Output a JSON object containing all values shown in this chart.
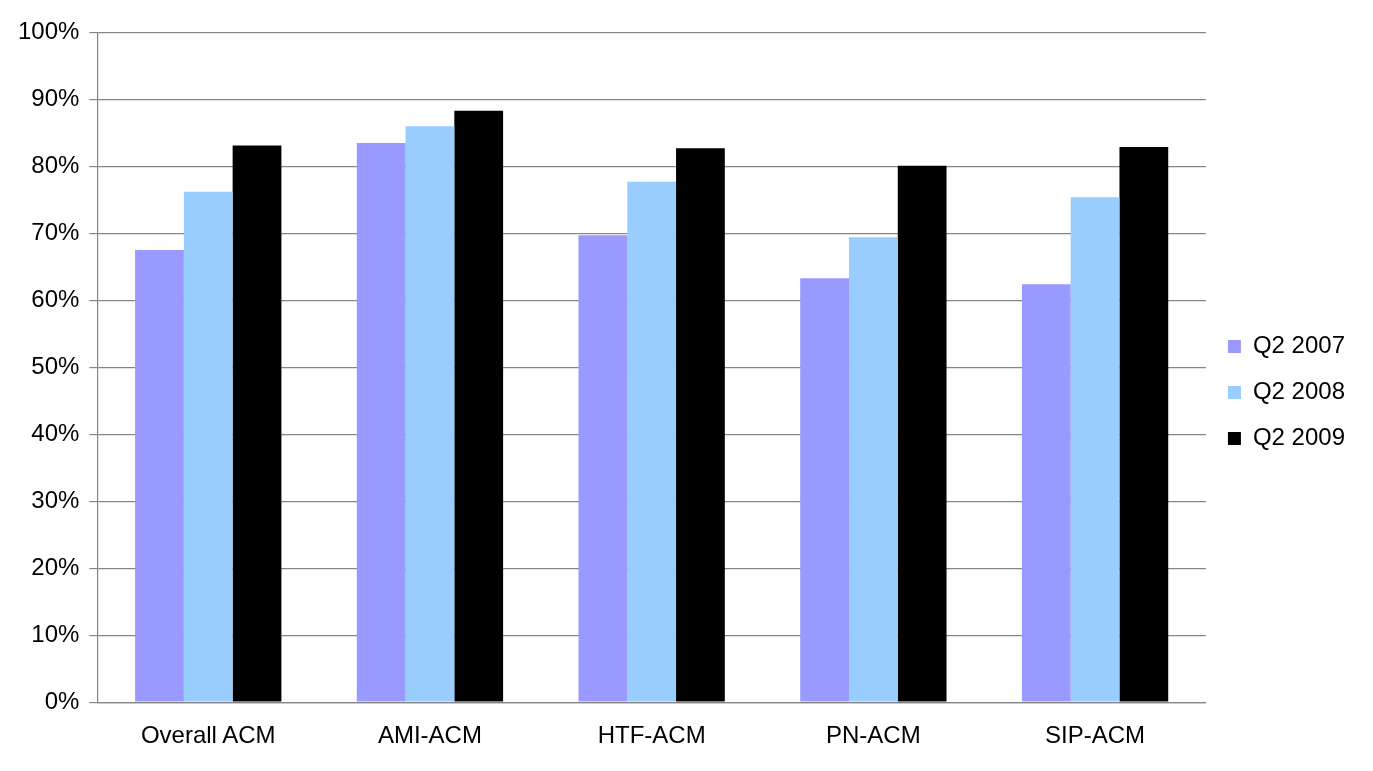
{
  "chart_data": {
    "type": "bar",
    "categories": [
      "Overall ACM",
      "AMI-ACM",
      "HTF-ACM",
      "PN-ACM",
      "SIP-ACM"
    ],
    "series": [
      {
        "name": "Q2 2007",
        "color": "#9999ff",
        "values": [
          67.5,
          83.5,
          69.7,
          63.3,
          62.4
        ]
      },
      {
        "name": "Q2 2008",
        "color": "#99ccff",
        "values": [
          76.2,
          86.0,
          77.7,
          69.4,
          75.4
        ]
      },
      {
        "name": "Q2 2009",
        "color": "#000000",
        "values": [
          83.1,
          88.3,
          82.7,
          80.1,
          82.9
        ]
      }
    ],
    "ylim": [
      0,
      100
    ],
    "yticks": [
      {
        "value": 0,
        "label": "0%"
      },
      {
        "value": 10,
        "label": "10%"
      },
      {
        "value": 20,
        "label": "20%"
      },
      {
        "value": 30,
        "label": "30%"
      },
      {
        "value": 40,
        "label": "40%"
      },
      {
        "value": 50,
        "label": "50%"
      },
      {
        "value": 60,
        "label": "60%"
      },
      {
        "value": 70,
        "label": "70%"
      },
      {
        "value": 80,
        "label": "80%"
      },
      {
        "value": 90,
        "label": "90%"
      },
      {
        "value": 100,
        "label": "100%"
      }
    ],
    "grid": "y",
    "legend": "right"
  }
}
